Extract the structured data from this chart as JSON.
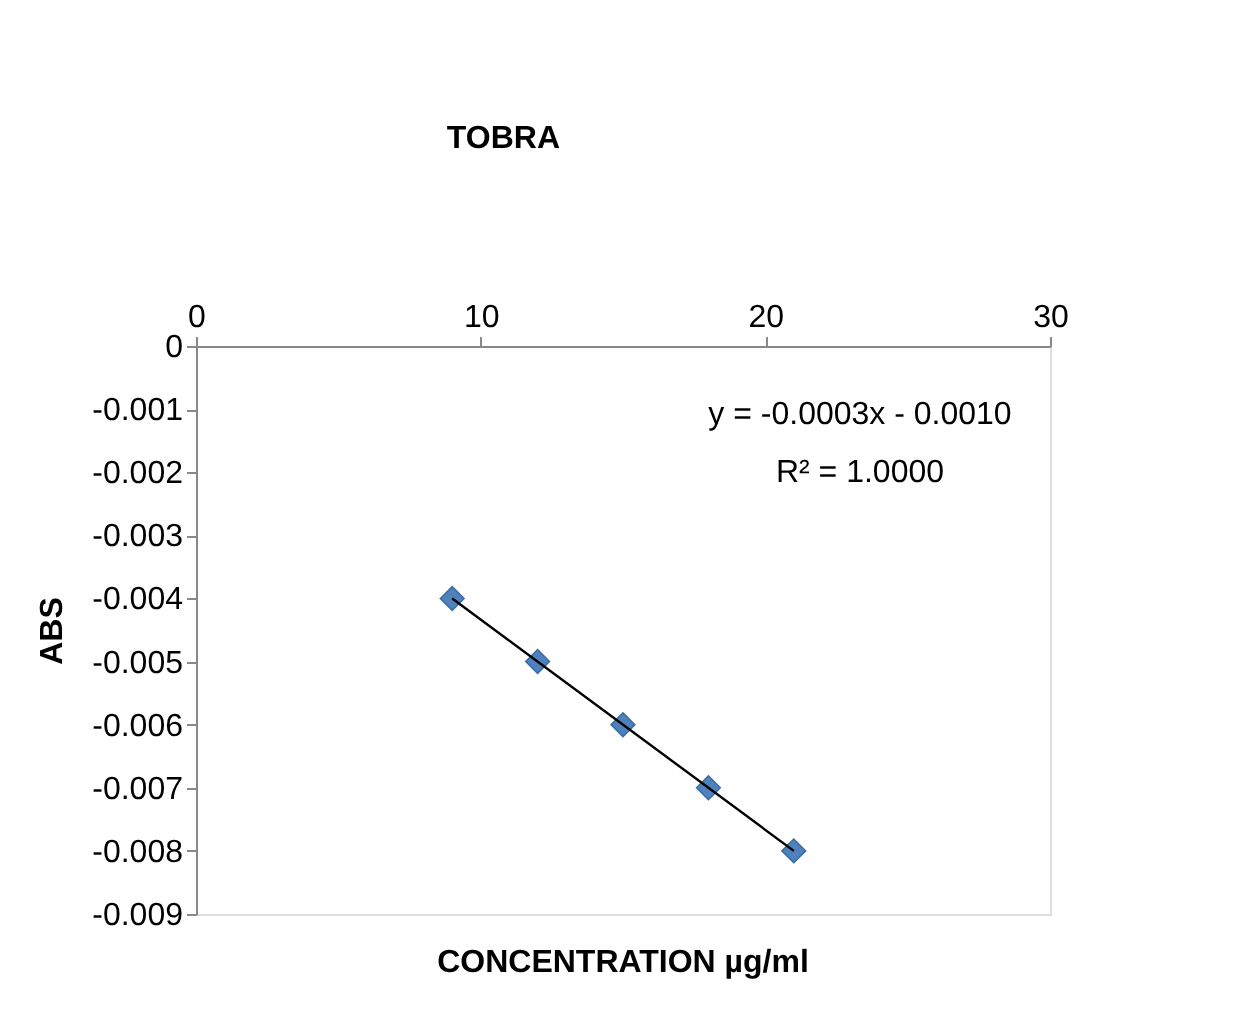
{
  "chart_data": {
    "type": "scatter",
    "title": "TOBRA",
    "xlabel": "CONCENTRATION µg/ml",
    "ylabel": "ABS",
    "xlim": [
      0,
      30
    ],
    "xticks": [
      0,
      10,
      20,
      30
    ],
    "ylim": [
      -0.009,
      0
    ],
    "yticks": [
      0,
      -0.001,
      -0.002,
      -0.003,
      -0.004,
      -0.005,
      -0.006,
      -0.007,
      -0.008,
      -0.009
    ],
    "grid": false,
    "marker": "diamond",
    "annotations": [
      "y = -0.0003x - 0.0010",
      "R² = 1.0000"
    ],
    "series": [
      {
        "color": "#4f81bd",
        "x": [
          9,
          12,
          15,
          18,
          21
        ],
        "values": [
          -0.004,
          -0.005,
          -0.006,
          -0.007,
          -0.008
        ]
      },
      {
        "type": "line",
        "color": "#000000",
        "line_style": "solid",
        "marker": "none",
        "x": [
          9,
          21
        ],
        "values": [
          -0.004,
          -0.008
        ]
      }
    ]
  }
}
